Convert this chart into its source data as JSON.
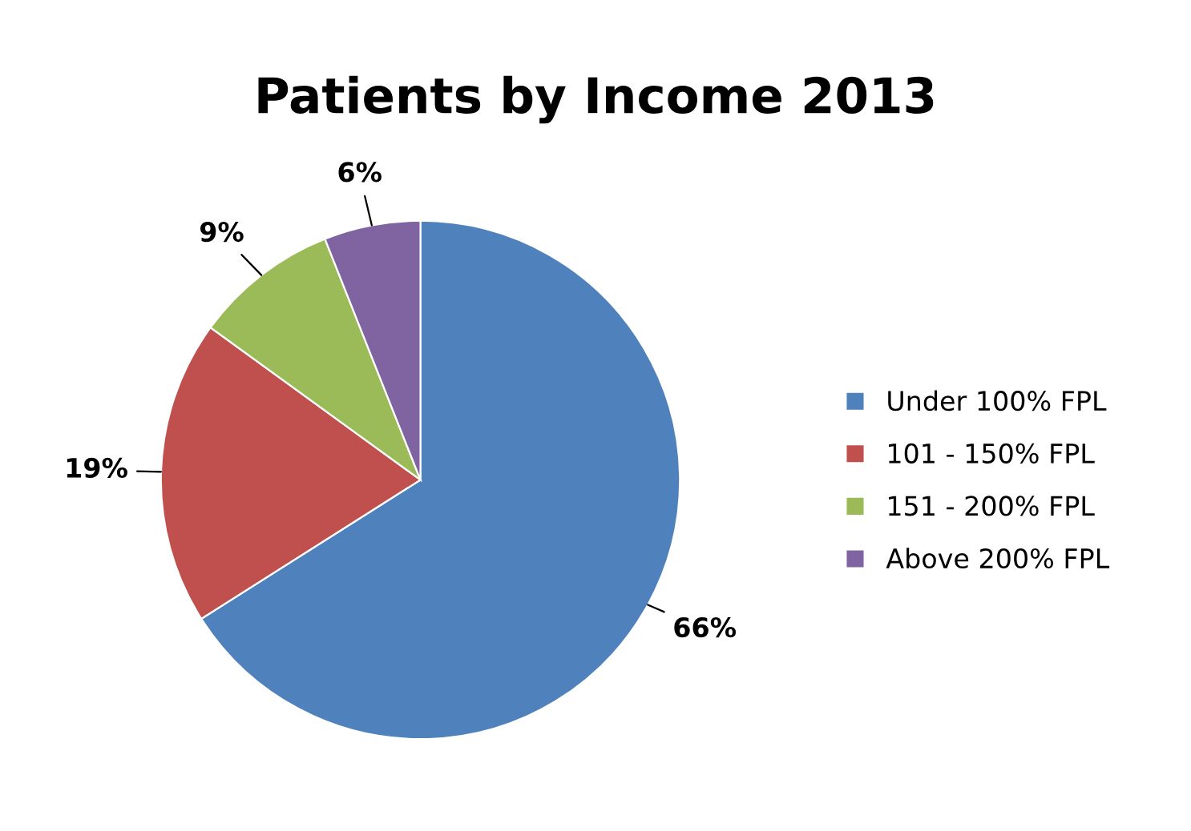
{
  "chart_data": {
    "type": "pie",
    "title": "Patients by Income 2013",
    "categories": [
      "Under 100% FPL",
      "101 - 150% FPL",
      "151 - 200% FPL",
      "Above 200% FPL"
    ],
    "values": [
      66,
      19,
      9,
      6
    ],
    "colors": [
      "#4f81bd",
      "#c0504d",
      "#9bbb59",
      "#8064a2"
    ],
    "value_labels": [
      "66%",
      "19%",
      "9%",
      "6%"
    ],
    "legend": "right"
  }
}
